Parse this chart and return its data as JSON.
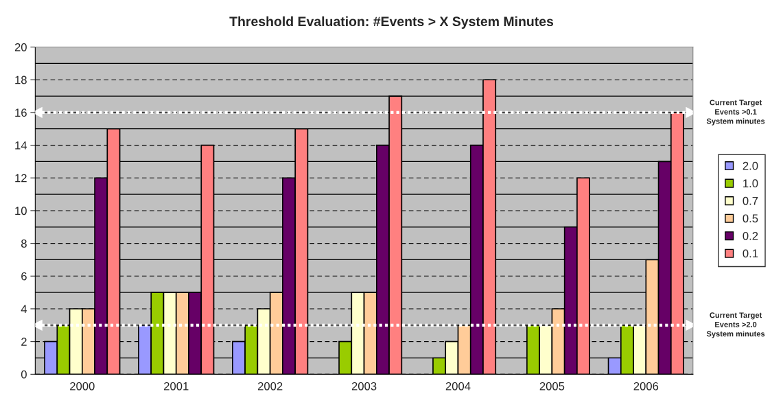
{
  "chart_data": {
    "type": "bar",
    "title": "Threshold Evaluation: #Events > X System Minutes",
    "categories": [
      "2000",
      "2001",
      "2002",
      "2003",
      "2004",
      "2005",
      "2006"
    ],
    "series": [
      {
        "name": "2.0",
        "color": "#9999ff",
        "values": [
          2,
          3,
          2,
          0,
          0,
          0,
          1
        ]
      },
      {
        "name": "1.0",
        "color": "#99cc00",
        "values": [
          3,
          5,
          3,
          2,
          1,
          3,
          3
        ]
      },
      {
        "name": "0.7",
        "color": "#ffffcc",
        "values": [
          4,
          5,
          4,
          5,
          2,
          3,
          3
        ]
      },
      {
        "name": "0.5",
        "color": "#ffcc99",
        "values": [
          4,
          5,
          5,
          5,
          3,
          4,
          7
        ]
      },
      {
        "name": "0.2",
        "color": "#660066",
        "values": [
          12,
          5,
          12,
          14,
          14,
          9,
          13
        ]
      },
      {
        "name": "0.1",
        "color": "#ff8080",
        "values": [
          15,
          14,
          15,
          17,
          18,
          12,
          16
        ]
      }
    ],
    "ylim": [
      0,
      20
    ],
    "yticks": [
      0,
      2,
      4,
      6,
      8,
      10,
      12,
      14,
      16,
      18,
      20
    ],
    "grid": true,
    "legend": "right",
    "ref_lines": [
      {
        "axis": "y",
        "value": 16,
        "label": "Current Target\nEvents >0.1\nSystem minutes",
        "color": "#ffffff",
        "line_style": "dotted"
      },
      {
        "axis": "y",
        "value": 3,
        "label": "Current Target\nEvents >2.0\nSystem minutes",
        "color": "#ffffff",
        "line_style": "dotted"
      }
    ]
  }
}
